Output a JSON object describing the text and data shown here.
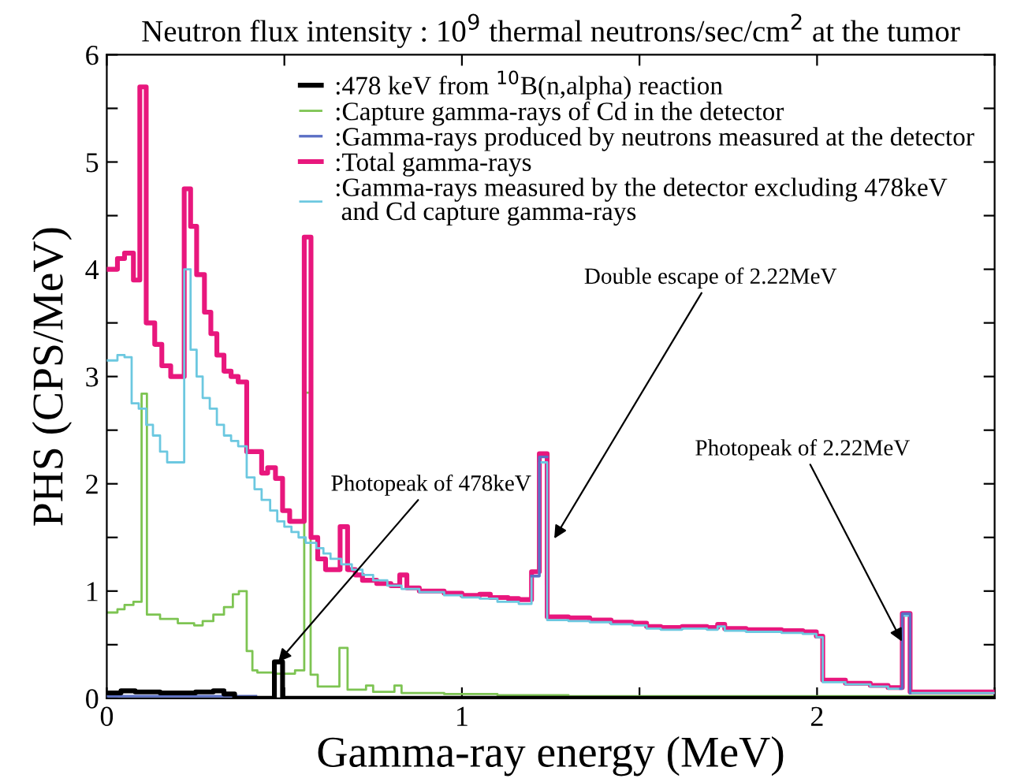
{
  "chart_data": {
    "type": "step",
    "title": "Neutron flux intensity : 10$^{9}$ thermal neutrons/sec/cm$^{2}$ at the tumor",
    "xlabel": "Gamma-ray energy (MeV)",
    "ylabel": "PHS (CPS/MeV)",
    "xlim": [
      0,
      2.5
    ],
    "xticks": [
      0,
      {
        "value": 0.5,
        "label": null
      },
      1,
      {
        "value": 1.5,
        "label": null
      },
      2,
      {
        "value": 2.5,
        "label": null
      }
    ],
    "ylim": [
      0,
      6
    ],
    "yticks": [
      0,
      {
        "value": 0.5,
        "label": null
      },
      1,
      {
        "value": 1.5,
        "label": null
      },
      2,
      {
        "value": 2.5,
        "label": null
      },
      3,
      {
        "value": 3.5,
        "label": null
      },
      4,
      {
        "value": 4.5,
        "label": null
      },
      5,
      {
        "value": 5.5,
        "label": null
      },
      6
    ],
    "grid": false,
    "legend": "top right",
    "series": [
      {
        "name": ":478 keV from $^{10}$B(n,alpha) reaction",
        "color": "#000000",
        "x": [
          0,
          0.04,
          0.08,
          0.15,
          0.25,
          0.3,
          0.33,
          0.36,
          0.472,
          0.495,
          2.5
        ],
        "values": [
          0.05,
          0.07,
          0.06,
          0.05,
          0.06,
          0.07,
          0.04,
          0.0,
          0.34,
          0.0,
          0.0
        ]
      },
      {
        "name": ":Capture gamma-rays of Cd in the detector",
        "color": "#7dc452",
        "x": [
          0,
          0.03,
          0.05,
          0.075,
          0.098,
          0.113,
          0.15,
          0.2,
          0.246,
          0.27,
          0.3,
          0.33,
          0.355,
          0.372,
          0.394,
          0.41,
          0.424,
          0.475,
          0.53,
          0.556,
          0.574,
          0.594,
          0.655,
          0.678,
          0.73,
          0.75,
          0.81,
          0.83,
          0.95,
          1.1,
          1.3,
          2.5
        ],
        "values": [
          0.8,
          0.83,
          0.87,
          0.9,
          2.84,
          0.78,
          0.74,
          0.7,
          0.68,
          0.72,
          0.78,
          0.85,
          0.97,
          1.0,
          0.44,
          0.26,
          0.24,
          0.23,
          0.26,
          2.85,
          0.22,
          0.11,
          0.47,
          0.08,
          0.12,
          0.06,
          0.12,
          0.05,
          0.04,
          0.03,
          0.02,
          0.02
        ]
      },
      {
        "name": ":Gamma-rays produced by neutrons measured at the detector",
        "color": "#5b6fc4",
        "x": [
          0,
          0.42,
          1.196,
          1.218,
          1.24,
          2.235,
          2.24,
          2.262
        ],
        "values": [
          0.02,
          null,
          1.14,
          2.25,
          null,
          0.09,
          0.79,
          0.05
        ]
      },
      {
        "name": ":Total gamma-rays",
        "color": "#e8177d",
        "x": [
          0,
          0.03,
          0.05,
          0.075,
          0.093,
          0.111,
          0.135,
          0.155,
          0.18,
          0.218,
          0.236,
          0.253,
          0.275,
          0.293,
          0.31,
          0.33,
          0.35,
          0.37,
          0.394,
          0.436,
          0.453,
          0.475,
          0.495,
          0.515,
          0.556,
          0.575,
          0.594,
          0.616,
          0.657,
          0.678,
          0.7,
          0.72,
          0.76,
          0.8,
          0.825,
          0.845,
          0.88,
          0.95,
          1.0,
          1.05,
          1.08,
          1.13,
          1.16,
          1.196,
          1.218,
          1.24,
          1.3,
          1.36,
          1.42,
          1.48,
          1.52,
          1.56,
          1.62,
          1.69,
          1.72,
          1.74,
          1.8,
          1.9,
          1.96,
          1.998,
          2.016,
          2.08,
          2.15,
          2.2,
          2.24,
          2.262,
          2.5
        ],
        "values": [
          4.0,
          4.1,
          4.15,
          3.9,
          5.7,
          3.5,
          3.3,
          3.1,
          3.0,
          4.75,
          4.4,
          3.95,
          3.6,
          3.4,
          3.2,
          3.05,
          3.0,
          2.95,
          2.3,
          2.1,
          2.15,
          2.05,
          1.75,
          1.65,
          4.3,
          1.5,
          1.3,
          1.2,
          1.6,
          1.2,
          1.15,
          1.1,
          1.07,
          1.05,
          1.15,
          1.03,
          1.0,
          0.98,
          0.96,
          0.97,
          0.94,
          0.93,
          0.92,
          1.18,
          2.28,
          0.76,
          0.75,
          0.73,
          0.71,
          0.7,
          0.67,
          0.66,
          0.67,
          0.66,
          0.69,
          0.65,
          0.64,
          0.63,
          0.62,
          0.58,
          0.17,
          0.14,
          0.12,
          0.1,
          0.79,
          0.06,
          0.06
        ]
      },
      {
        "name": ":Gamma-rays measured by the detector excluding 478keV\n and Cd capture gamma-rays",
        "color": "#6cc8e0",
        "x": [
          0,
          0.03,
          0.05,
          0.07,
          0.09,
          0.111,
          0.13,
          0.15,
          0.17,
          0.218,
          0.236,
          0.253,
          0.27,
          0.29,
          0.31,
          0.33,
          0.35,
          0.37,
          0.394,
          0.416,
          0.436,
          0.46,
          0.48,
          0.5,
          0.52,
          0.54,
          0.56,
          0.59,
          0.61,
          0.63,
          0.66,
          0.69,
          0.72,
          0.75,
          0.79,
          0.83,
          0.88,
          0.95,
          1.0,
          1.05,
          1.1,
          1.16,
          1.196,
          1.218,
          1.24,
          1.3,
          1.36,
          1.42,
          1.48,
          1.52,
          1.56,
          1.62,
          1.69,
          1.72,
          1.74,
          1.8,
          1.9,
          1.96,
          1.998,
          2.016,
          2.08,
          2.15,
          2.2,
          2.24,
          2.262,
          2.5
        ],
        "values": [
          3.15,
          3.2,
          3.18,
          2.75,
          2.7,
          2.55,
          2.45,
          2.3,
          2.2,
          4.0,
          3.25,
          3.0,
          2.8,
          2.7,
          2.55,
          2.45,
          2.4,
          2.35,
          2.06,
          1.95,
          1.85,
          1.75,
          1.65,
          1.6,
          1.55,
          1.5,
          1.45,
          1.4,
          1.35,
          1.3,
          1.25,
          1.2,
          1.15,
          1.1,
          1.05,
          1.02,
          0.99,
          0.96,
          0.94,
          0.93,
          0.9,
          0.88,
          1.14,
          2.2,
          0.73,
          0.72,
          0.71,
          0.69,
          0.68,
          0.65,
          0.64,
          0.65,
          0.64,
          0.67,
          0.63,
          0.62,
          0.61,
          0.6,
          0.57,
          0.15,
          0.13,
          0.11,
          0.09,
          0.77,
          0.05,
          0.05
        ]
      }
    ],
    "annotations": [
      {
        "text": "Photopeak of 478keV",
        "x": 0.483,
        "y": 0.34
      },
      {
        "text": "Double escape of 2.22MeV",
        "x": 1.26,
        "y": 1.49
      },
      {
        "text": "Photopeak of 2.22MeV",
        "x": 2.239,
        "y": 0.53
      }
    ]
  }
}
